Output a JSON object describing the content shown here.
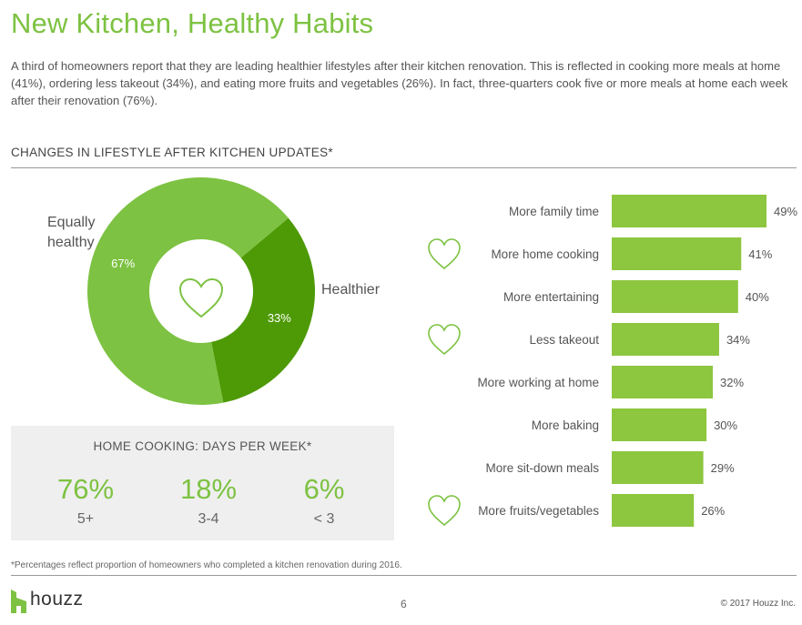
{
  "title": "New Kitchen, Healthy Habits",
  "intro": "A third of homeowners report that they are leading healthier lifestyles after their kitchen renovation. This is reflected in cooking more meals at home (41%), ordering less takeout (34%), and eating more fruits and vegetables (26%). In fact, three-quarters cook five or more meals at home each week after their renovation (76%).",
  "section_heading": "CHANGES IN LIFESTYLE AFTER KITCHEN UPDATES*",
  "colors": {
    "light_green": "#7dc242",
    "dark_green": "#4e9a06",
    "bar_green": "#8dc63f",
    "text_gray": "#555555",
    "panel_gray": "#efefef"
  },
  "chart_data": [
    {
      "type": "pie",
      "slices": [
        {
          "label": "Equally healthy",
          "value": 67,
          "value_label": "67%",
          "color": "#7dc242"
        },
        {
          "label": "Healthier",
          "value": 33,
          "value_label": "33%",
          "color": "#4e9a06"
        }
      ],
      "center_icon": "heart-icon"
    },
    {
      "type": "bar",
      "orientation": "horizontal",
      "categories": [
        "More family time",
        "More home cooking",
        "More entertaining",
        "Less takeout",
        "More working at home",
        "More baking",
        "More sit-down meals",
        "More fruits/vegetables"
      ],
      "values": [
        49,
        41,
        40,
        34,
        32,
        30,
        29,
        26
      ],
      "value_labels": [
        "49%",
        "41%",
        "40%",
        "34%",
        "32%",
        "30%",
        "29%",
        "26%"
      ],
      "heart_icon_rows": [
        "More home cooking",
        "Less takeout",
        "More fruits/vegetables"
      ],
      "color": "#8dc63f"
    }
  ],
  "home_cooking": {
    "title": "HOME COOKING: DAYS PER WEEK*",
    "stats": [
      {
        "pct": "76%",
        "label": "5+"
      },
      {
        "pct": "18%",
        "label": "3-4"
      },
      {
        "pct": "6%",
        "label": "< 3"
      }
    ]
  },
  "footnote": "*Percentages reflect proportion of homeowners who completed a kitchen renovation during 2016.",
  "footer": {
    "logo_text": "houzz",
    "page_number": "6",
    "copyright": "© 2017 Houzz Inc."
  }
}
